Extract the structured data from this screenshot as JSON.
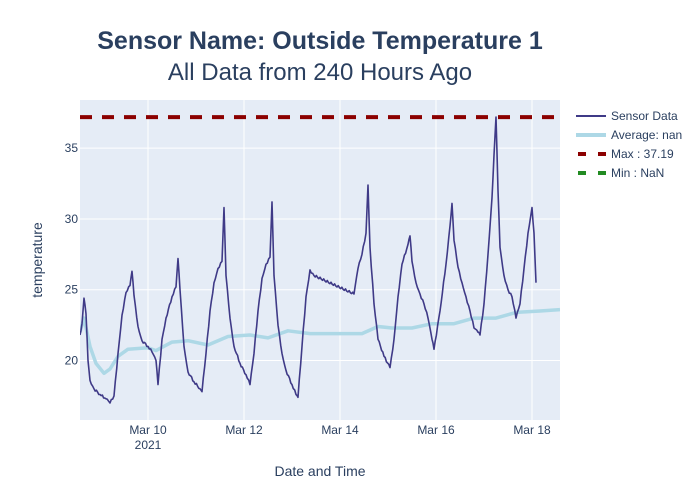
{
  "chart_data": {
    "type": "line",
    "title": "Sensor Name: Outside Temperature 1",
    "subtitle": "All Data from 240 Hours Ago",
    "xlabel": "Date and Time",
    "ylabel": "temperature",
    "x_ticks": [
      "Mar 10",
      "Mar 12",
      "Mar 14",
      "Mar 16",
      "Mar 18"
    ],
    "x_tick_year": "2021",
    "y_ticks": [
      20,
      25,
      30,
      35
    ],
    "xlim": [
      "2021-03-08 14:00",
      "2021-03-18 14:00"
    ],
    "ylim": [
      15.8,
      38.4
    ],
    "grid": true,
    "legend_position": "right",
    "background_color": "#e5ecf6",
    "series": [
      {
        "name": "Sensor Data",
        "color": "#3f3a87",
        "style": "line",
        "points": [
          [
            "2021-03-08 14:00",
            21.8
          ],
          [
            "2021-03-08 15:00",
            22.6
          ],
          [
            "2021-03-08 16:00",
            24.4
          ],
          [
            "2021-03-08 17:00",
            23.3
          ],
          [
            "2021-03-08 18:00",
            20.0
          ],
          [
            "2021-03-08 19:00",
            18.6
          ],
          [
            "2021-03-08 21:00",
            18.0
          ],
          [
            "2021-03-09 00:00",
            17.6
          ],
          [
            "2021-03-09 03:00",
            17.3
          ],
          [
            "2021-03-09 05:00",
            17.0
          ],
          [
            "2021-03-09 07:00",
            17.5
          ],
          [
            "2021-03-09 09:00",
            20.5
          ],
          [
            "2021-03-09 11:00",
            23.2
          ],
          [
            "2021-03-09 13:00",
            24.8
          ],
          [
            "2021-03-09 15:00",
            25.3
          ],
          [
            "2021-03-09 16:00",
            26.3
          ],
          [
            "2021-03-09 17:00",
            24.6
          ],
          [
            "2021-03-09 19:00",
            22.4
          ],
          [
            "2021-03-09 21:00",
            21.4
          ],
          [
            "2021-03-10 00:00",
            21.0
          ],
          [
            "2021-03-10 02:00",
            20.6
          ],
          [
            "2021-03-10 04:00",
            20.0
          ],
          [
            "2021-03-10 05:00",
            18.3
          ],
          [
            "2021-03-10 07:00",
            21.5
          ],
          [
            "2021-03-10 09:00",
            23.0
          ],
          [
            "2021-03-10 12:00",
            24.5
          ],
          [
            "2021-03-10 14:00",
            25.2
          ],
          [
            "2021-03-10 15:00",
            27.2
          ],
          [
            "2021-03-10 16:00",
            25.0
          ],
          [
            "2021-03-10 18:00",
            21.0
          ],
          [
            "2021-03-10 20:00",
            19.2
          ],
          [
            "2021-03-10 23:00",
            18.5
          ],
          [
            "2021-03-11 02:00",
            18.0
          ],
          [
            "2021-03-11 03:00",
            17.8
          ],
          [
            "2021-03-11 05:00",
            20.5
          ],
          [
            "2021-03-11 07:00",
            23.5
          ],
          [
            "2021-03-11 09:00",
            25.5
          ],
          [
            "2021-03-11 11:00",
            26.5
          ],
          [
            "2021-03-11 13:00",
            27.0
          ],
          [
            "2021-03-11 14:00",
            30.8
          ],
          [
            "2021-03-11 15:00",
            26.0
          ],
          [
            "2021-03-11 17:00",
            23.0
          ],
          [
            "2021-03-11 19:00",
            21.0
          ],
          [
            "2021-03-11 22:00",
            19.8
          ],
          [
            "2021-03-12 01:00",
            19.0
          ],
          [
            "2021-03-12 03:00",
            18.3
          ],
          [
            "2021-03-12 05:00",
            20.5
          ],
          [
            "2021-03-12 07:00",
            23.5
          ],
          [
            "2021-03-12 09:00",
            25.8
          ],
          [
            "2021-03-12 11:00",
            26.8
          ],
          [
            "2021-03-12 13:00",
            27.3
          ],
          [
            "2021-03-12 14:00",
            31.2
          ],
          [
            "2021-03-12 15:00",
            26.0
          ],
          [
            "2021-03-12 17:00",
            22.5
          ],
          [
            "2021-03-12 19:00",
            20.5
          ],
          [
            "2021-03-12 21:00",
            19.3
          ],
          [
            "2021-03-13 00:00",
            18.3
          ],
          [
            "2021-03-13 02:00",
            17.6
          ],
          [
            "2021-03-13 03:00",
            17.4
          ],
          [
            "2021-03-13 05:00",
            21.0
          ],
          [
            "2021-03-13 07:00",
            24.5
          ],
          [
            "2021-03-13 09:00",
            26.4
          ],
          [
            "2021-03-13 11:00",
            26.0
          ],
          [
            "2021-03-14 07:00",
            24.7
          ],
          [
            "2021-03-14 09:00",
            26.5
          ],
          [
            "2021-03-14 11:00",
            27.5
          ],
          [
            "2021-03-14 13:00",
            29.0
          ],
          [
            "2021-03-14 14:00",
            32.4
          ],
          [
            "2021-03-14 15:00",
            28.0
          ],
          [
            "2021-03-14 17:00",
            24.0
          ],
          [
            "2021-03-14 19:00",
            21.5
          ],
          [
            "2021-03-14 22:00",
            20.3
          ],
          [
            "2021-03-15 01:00",
            19.5
          ],
          [
            "2021-03-15 03:00",
            21.5
          ],
          [
            "2021-03-15 05:00",
            24.5
          ],
          [
            "2021-03-15 07:00",
            26.8
          ],
          [
            "2021-03-15 10:00",
            28.2
          ],
          [
            "2021-03-15 11:00",
            28.8
          ],
          [
            "2021-03-15 12:00",
            27.0
          ],
          [
            "2021-03-15 14:00",
            25.5
          ],
          [
            "2021-03-15 16:00",
            24.7
          ],
          [
            "2021-03-15 18:00",
            24.0
          ],
          [
            "2021-03-15 20:00",
            23.0
          ],
          [
            "2021-03-15 22:00",
            21.5
          ],
          [
            "2021-03-15 23:00",
            20.8
          ],
          [
            "2021-03-16 02:00",
            23.5
          ],
          [
            "2021-03-16 05:00",
            26.8
          ],
          [
            "2021-03-16 07:00",
            29.5
          ],
          [
            "2021-03-16 08:00",
            31.1
          ],
          [
            "2021-03-16 09:00",
            28.5
          ],
          [
            "2021-03-16 11:00",
            26.6
          ],
          [
            "2021-03-16 13:00",
            25.5
          ],
          [
            "2021-03-16 15:00",
            24.5
          ],
          [
            "2021-03-16 17:00",
            23.5
          ],
          [
            "2021-03-16 19:00",
            22.3
          ],
          [
            "2021-03-16 21:00",
            22.0
          ],
          [
            "2021-03-16 22:00",
            21.8
          ],
          [
            "2021-03-17 00:00",
            24.0
          ],
          [
            "2021-03-17 02:00",
            27.5
          ],
          [
            "2021-03-17 04:00",
            31.5
          ],
          [
            "2021-03-17 05:00",
            34.5
          ],
          [
            "2021-03-17 06:00",
            37.2
          ],
          [
            "2021-03-17 07:00",
            32.0
          ],
          [
            "2021-03-17 08:00",
            28.0
          ],
          [
            "2021-03-17 10:00",
            26.0
          ],
          [
            "2021-03-17 12:00",
            25.0
          ],
          [
            "2021-03-17 14:00",
            24.5
          ],
          [
            "2021-03-17 16:00",
            23.0
          ],
          [
            "2021-03-17 18:00",
            24.0
          ],
          [
            "2021-03-17 20:00",
            26.5
          ],
          [
            "2021-03-17 22:00",
            29.0
          ],
          [
            "2021-03-18 00:00",
            30.8
          ],
          [
            "2021-03-18 01:00",
            29.0
          ],
          [
            "2021-03-18 02:00",
            25.5
          ]
        ]
      },
      {
        "name": "Average: nan",
        "color": "#add8e6",
        "style": "line",
        "points": [
          [
            "2021-03-08 14:00",
            22.0
          ],
          [
            "2021-03-08 16:00",
            23.0
          ],
          [
            "2021-03-08 19:00",
            21.0
          ],
          [
            "2021-03-08 22:00",
            19.8
          ],
          [
            "2021-03-09 02:00",
            19.1
          ],
          [
            "2021-03-09 05:00",
            19.4
          ],
          [
            "2021-03-09 09:00",
            20.3
          ],
          [
            "2021-03-09 14:00",
            20.8
          ],
          [
            "2021-03-10 00:00",
            20.9
          ],
          [
            "2021-03-10 04:00",
            20.7
          ],
          [
            "2021-03-10 12:00",
            21.3
          ],
          [
            "2021-03-10 20:00",
            21.4
          ],
          [
            "2021-03-11 06:00",
            21.1
          ],
          [
            "2021-03-11 16:00",
            21.7
          ],
          [
            "2021-03-12 03:00",
            21.8
          ],
          [
            "2021-03-12 12:00",
            21.6
          ],
          [
            "2021-03-12 22:00",
            22.1
          ],
          [
            "2021-03-13 09:00",
            21.9
          ],
          [
            "2021-03-13 22:00",
            21.9
          ],
          [
            "2021-03-14 11:00",
            21.9
          ],
          [
            "2021-03-14 19:00",
            22.4
          ],
          [
            "2021-03-15 02:00",
            22.3
          ],
          [
            "2021-03-15 12:00",
            22.3
          ],
          [
            "2021-03-15 22:00",
            22.6
          ],
          [
            "2021-03-16 09:00",
            22.6
          ],
          [
            "2021-03-16 19:00",
            23.0
          ],
          [
            "2021-03-17 06:00",
            23.0
          ],
          [
            "2021-03-17 16:00",
            23.4
          ],
          [
            "2021-03-18 04:00",
            23.5
          ],
          [
            "2021-03-18 14:00",
            23.6
          ]
        ]
      },
      {
        "name": "Max : 37.19",
        "color": "#8b0000",
        "style": "dash",
        "value": 37.19
      },
      {
        "name": "Min : NaN",
        "color": "#228b22",
        "style": "dash",
        "value": null
      }
    ]
  }
}
